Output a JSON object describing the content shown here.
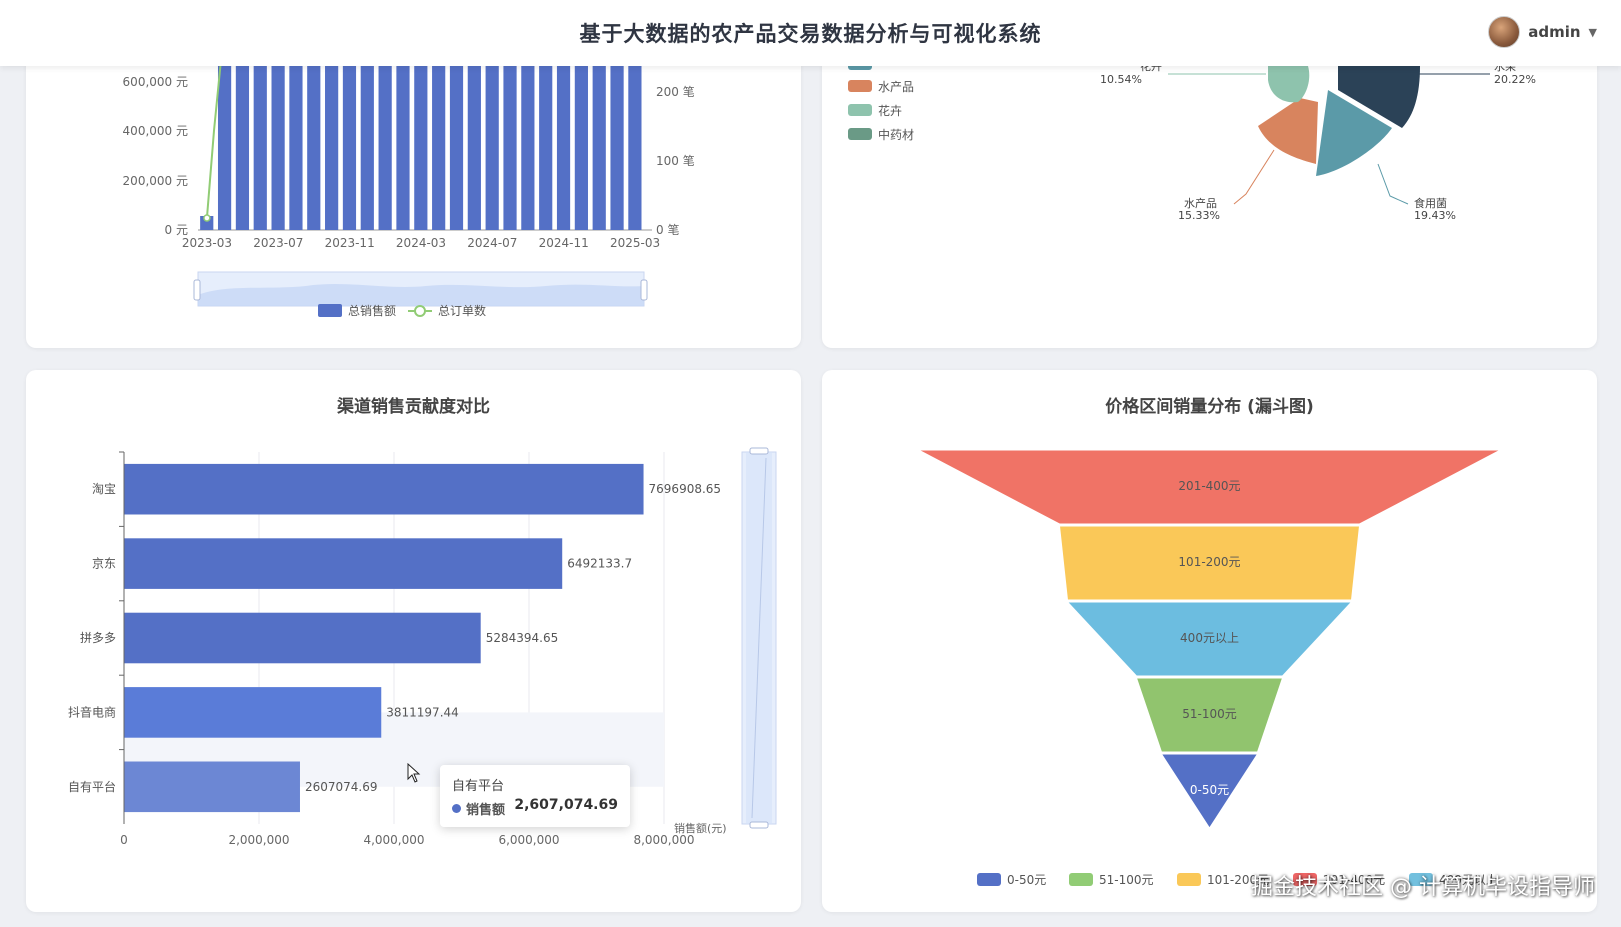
{
  "header": {
    "title": "基于大数据的农产品交易数据分析与可视化系统",
    "user": "admin",
    "caret": "▼"
  },
  "colors": {
    "bar": "#5470c6",
    "line": "#91cc75",
    "dark": "#2b4257",
    "teal": "#5b9aa8",
    "orange": "#d8845e",
    "mint": "#8ec3ad",
    "green": "#6a9a86"
  },
  "chart_data": [
    {
      "type": "bar",
      "y_left_ticks": [
        "0 元",
        "200,000 元",
        "400,000 元",
        "600,000 元"
      ],
      "y_right_ticks": [
        "0 笔",
        "100 笔",
        "200 笔"
      ],
      "x_ticks": [
        "2023-03",
        "2023-07",
        "2023-11",
        "2024-03",
        "2024-07",
        "2024-11",
        "2025-03"
      ],
      "series": [
        {
          "name": "总销售额",
          "kind": "bar"
        },
        {
          "name": "总订单数",
          "kind": "line"
        }
      ],
      "legend": [
        "总销售额",
        "总订单数"
      ],
      "bar_count": 25
    },
    {
      "type": "pie",
      "legend": [
        "水产品",
        "花卉",
        "中药材"
      ],
      "slices": [
        {
          "name": "水果",
          "value": 20.22,
          "label": "20.22%",
          "color": "#2b4257"
        },
        {
          "name": "食用菌",
          "value": 19.43,
          "label": "19.43%",
          "color": "#5b9aa8"
        },
        {
          "name": "水产品",
          "value": 15.33,
          "label": "15.33%",
          "color": "#d8845e"
        },
        {
          "name": "花卉",
          "value": 10.54,
          "label": "10.54%",
          "color": "#8ec3ad"
        }
      ]
    },
    {
      "type": "bar",
      "title": "渠道销售贡献度对比",
      "orientation": "horizontal",
      "categories": [
        "淘宝",
        "京东",
        "拼多多",
        "抖音电商",
        "自有平台"
      ],
      "values": [
        7696908.65,
        6492133.7,
        5284394.65,
        3811197.44,
        2607074.69
      ],
      "value_labels": [
        "7696908.65",
        "6492133.7",
        "5284394.65",
        "3811197.44",
        "2607074.69"
      ],
      "x_ticks": [
        "0",
        "2,000,000",
        "4,000,000",
        "6,000,000",
        "8,000,000"
      ],
      "xlabel": "销售额(元)",
      "xlim": [
        0,
        8000000
      ],
      "tooltip": {
        "title": "自有平台",
        "series": "销售额",
        "value": "2,607,074.69"
      }
    },
    {
      "type": "funnel",
      "title": "价格区间销量分布 (漏斗图)",
      "stages": [
        {
          "name": "201-400元",
          "color": "#f07366"
        },
        {
          "name": "101-200元",
          "color": "#fac858"
        },
        {
          "name": "400元以上",
          "color": "#6cbde0"
        },
        {
          "name": "51-100元",
          "color": "#91c46e"
        },
        {
          "name": "0-50元",
          "color": "#5470c6"
        }
      ],
      "legend": [
        {
          "name": "0-50元",
          "color": "#5470c6"
        },
        {
          "name": "51-100元",
          "color": "#91cc75"
        },
        {
          "name": "101-200元",
          "color": "#fac858"
        },
        {
          "name": "201-400元",
          "color": "#ee6666"
        },
        {
          "name": "400元以上",
          "color": "#73c0de"
        }
      ]
    }
  ],
  "watermark": "掘金技术社区 @ 计算机毕设指导师"
}
